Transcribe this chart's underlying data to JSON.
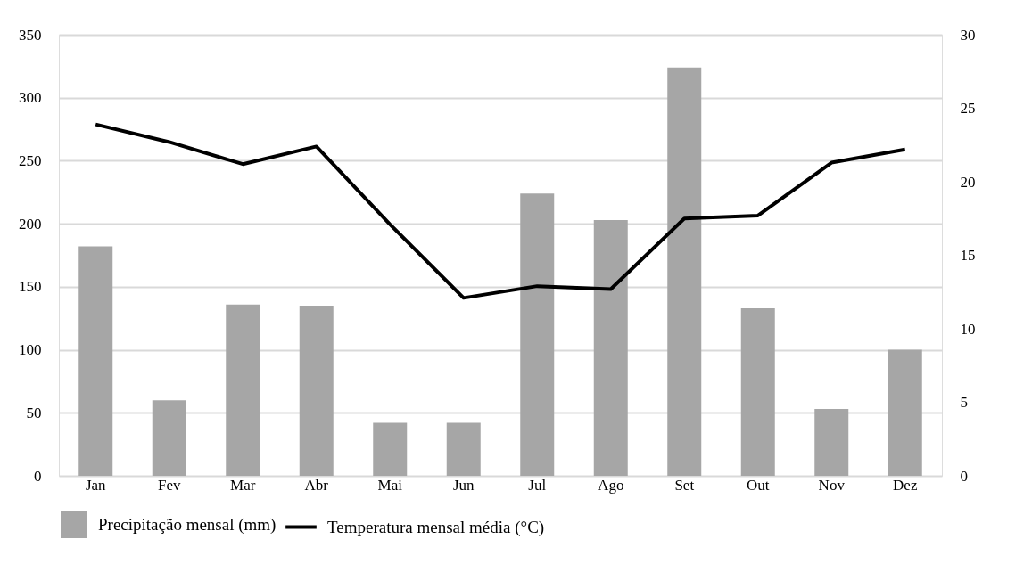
{
  "chart_data": {
    "type": "bar",
    "categories": [
      "Jan",
      "Fev",
      "Mar",
      "Abr",
      "Mai",
      "Jun",
      "Jul",
      "Ago",
      "Set",
      "Out",
      "Nov",
      "Dez"
    ],
    "series": [
      {
        "name": "Precipitação mensal (mm)",
        "color": "#a6a6a6",
        "values": [
          182,
          60,
          136,
          135,
          42,
          42,
          224,
          203,
          324,
          133,
          53,
          100
        ]
      },
      {
        "name": "Temperatura mensal média (°C)",
        "color": "#000000",
        "type": "line",
        "axis": "y2",
        "values": [
          23.9,
          22.7,
          21.2,
          22.4,
          17.1,
          12.1,
          12.9,
          12.7,
          17.5,
          17.7,
          21.3,
          22.2
        ]
      }
    ],
    "ylim": [
      0,
      350
    ],
    "yticks": [
      0,
      50,
      100,
      150,
      200,
      250,
      300,
      350
    ],
    "y2lim": [
      0,
      30
    ],
    "y2ticks": [
      0,
      5,
      10,
      15,
      20,
      25,
      30
    ],
    "grid": "y",
    "legend": "bottom",
    "marker": "none",
    "line_style": "solid"
  }
}
